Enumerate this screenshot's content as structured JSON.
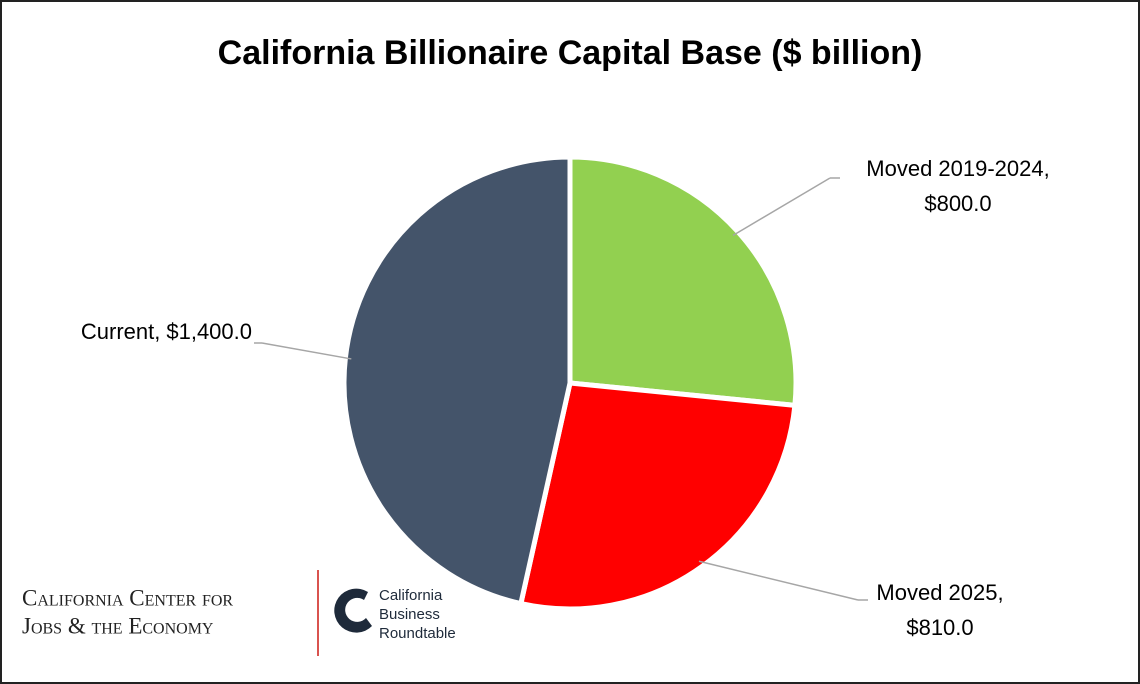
{
  "chart_data": {
    "type": "pie",
    "title": "California Billionaire Capital Base ($ billion)",
    "categories": [
      "Moved 2019-2024,",
      "Moved 2025,",
      "Current,"
    ],
    "values": [
      800.0,
      810.0,
      1400.0
    ],
    "value_labels": [
      "$800.0",
      "$810.0",
      "$1,400.0"
    ],
    "colors": [
      "#92d050",
      "#ff0000",
      "#44546a"
    ]
  },
  "footer": {
    "left": [
      "California Center for",
      "Jobs & the Economy"
    ],
    "right": [
      "California",
      "Business",
      "Roundtable"
    ]
  }
}
